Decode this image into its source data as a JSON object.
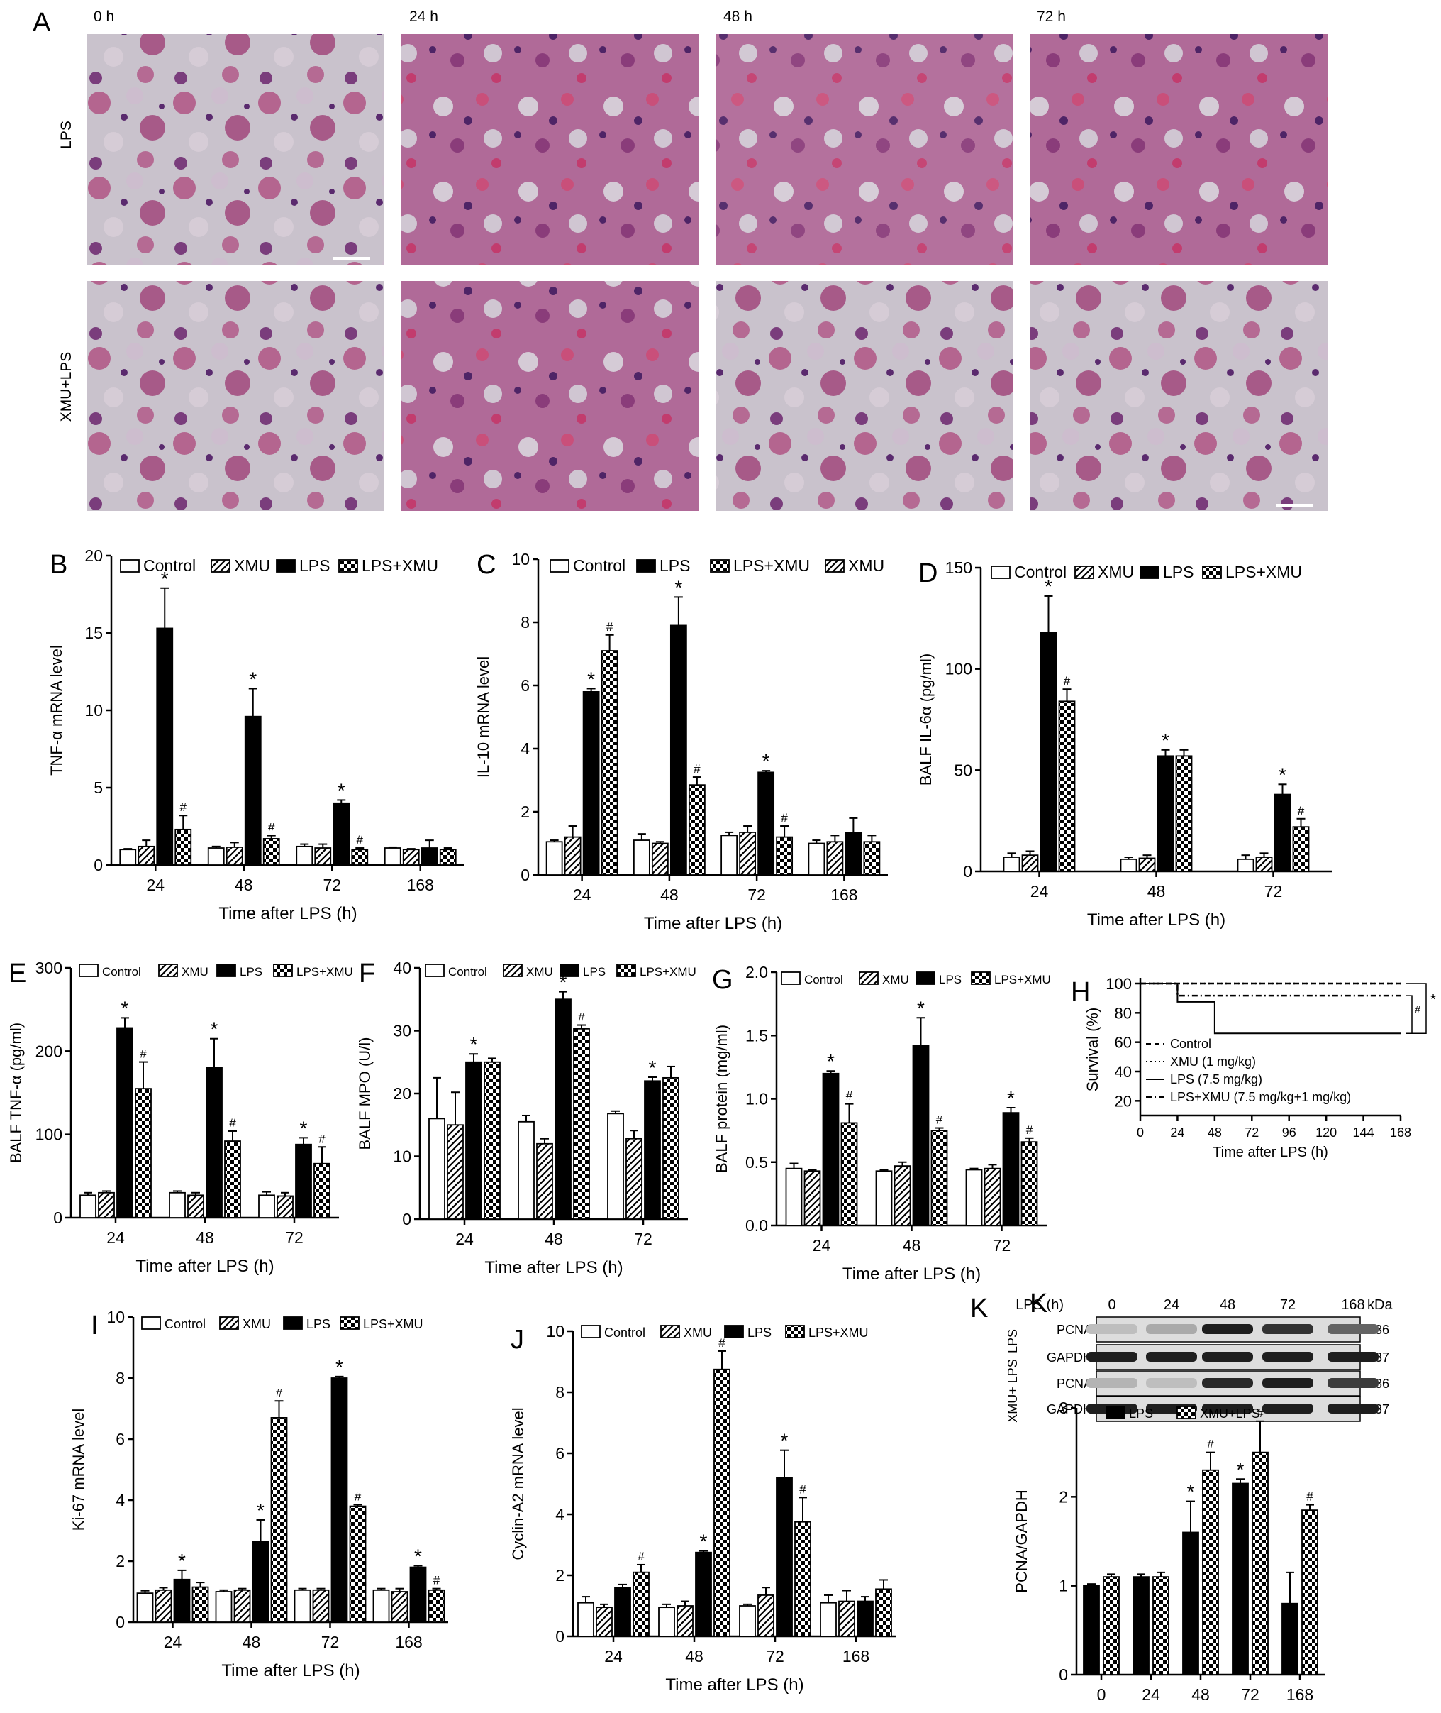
{
  "figure": {
    "panel_a": {
      "letter": "A",
      "time_labels": [
        "0 h",
        "24 h",
        "48 h",
        "72 h"
      ],
      "row_labels": [
        "LPS",
        "XMU+LPS"
      ]
    },
    "panel_k_blot": {
      "header": "LPS (h)",
      "times": [
        "0",
        "24",
        "48",
        "72",
        "168"
      ],
      "kda_label": "kDa",
      "group_labels": [
        "LPS",
        "XMU+ LPS"
      ],
      "bands": [
        {
          "name": "PCNA",
          "kda": "36",
          "intensity": [
            0.15,
            0.25,
            0.95,
            0.85,
            0.6
          ]
        },
        {
          "name": "GAPDH",
          "kda": "37",
          "intensity": [
            0.95,
            0.95,
            0.95,
            0.95,
            0.95
          ]
        },
        {
          "name": "PCNA",
          "kda": "36",
          "intensity": [
            0.2,
            0.15,
            0.9,
            0.95,
            0.8
          ]
        },
        {
          "name": "GAPDH",
          "kda": "37",
          "intensity": [
            0.95,
            0.95,
            0.95,
            0.95,
            0.95
          ]
        }
      ]
    }
  },
  "chart_data": [
    {
      "panel": "B",
      "type": "bar",
      "categories": [
        "24",
        "48",
        "72",
        "168"
      ],
      "series": [
        {
          "name": "Control",
          "values": [
            1.0,
            1.1,
            1.2,
            1.1
          ],
          "errors": [
            0.05,
            0.1,
            0.15,
            0.05
          ]
        },
        {
          "name": "XMU",
          "values": [
            1.2,
            1.15,
            1.1,
            1.0
          ],
          "errors": [
            0.4,
            0.3,
            0.25,
            0.05
          ]
        },
        {
          "name": "LPS",
          "values": [
            15.3,
            9.6,
            4.0,
            1.1
          ],
          "errors": [
            2.6,
            1.8,
            0.2,
            0.5
          ]
        },
        {
          "name": "LPS+XMU",
          "values": [
            2.3,
            1.7,
            1.0,
            1.0
          ],
          "errors": [
            0.9,
            0.2,
            0.1,
            0.1
          ]
        }
      ],
      "annotations": [
        {
          "text": "*",
          "series": 2,
          "category": 0
        },
        {
          "text": "#",
          "series": 3,
          "category": 0
        },
        {
          "text": "*",
          "series": 2,
          "category": 1
        },
        {
          "text": "#",
          "series": 3,
          "category": 1
        },
        {
          "text": "*",
          "series": 2,
          "category": 2
        },
        {
          "text": "#",
          "series": 3,
          "category": 2
        }
      ],
      "xlabel": "Time after LPS (h)",
      "ylabel": "TNF-α mRNA level",
      "ylim": [
        0,
        20
      ],
      "yticks": [
        0,
        5,
        10,
        15,
        20
      ],
      "legend": "top"
    },
    {
      "panel": "C",
      "type": "bar",
      "categories": [
        "24",
        "48",
        "72",
        "168"
      ],
      "series": [
        {
          "name": "Control",
          "values": [
            1.05,
            1.1,
            1.25,
            1.0
          ],
          "errors": [
            0.05,
            0.2,
            0.1,
            0.1
          ]
        },
        {
          "name": "XMU",
          "values": [
            1.2,
            1.0,
            1.35,
            1.05
          ],
          "errors": [
            0.35,
            0.05,
            0.2,
            0.2
          ]
        },
        {
          "name": "LPS",
          "values": [
            5.8,
            7.9,
            3.25,
            1.35
          ],
          "errors": [
            0.1,
            0.9,
            0.05,
            0.45
          ]
        },
        {
          "name": "LPS+XMU",
          "values": [
            7.1,
            2.85,
            1.2,
            1.05
          ],
          "errors": [
            0.5,
            0.25,
            0.35,
            0.2
          ]
        }
      ],
      "legend_order": [
        "Control",
        "LPS",
        "LPS+XMU",
        "XMU"
      ],
      "annotations": [
        {
          "text": "*",
          "series": 2,
          "category": 0
        },
        {
          "text": "#",
          "series": 3,
          "category": 0
        },
        {
          "text": "*",
          "series": 2,
          "category": 1
        },
        {
          "text": "#",
          "series": 3,
          "category": 1
        },
        {
          "text": "*",
          "series": 2,
          "category": 2
        },
        {
          "text": "#",
          "series": 3,
          "category": 2
        }
      ],
      "xlabel": "Time after LPS (h)",
      "ylabel": "IL-10 mRNA level",
      "ylim": [
        0,
        10
      ],
      "yticks": [
        0,
        2,
        4,
        6,
        8,
        10
      ],
      "legend": "top"
    },
    {
      "panel": "D",
      "type": "bar",
      "categories": [
        "24",
        "48",
        "72"
      ],
      "series": [
        {
          "name": "Control",
          "values": [
            7,
            6,
            6
          ],
          "errors": [
            2,
            1,
            2
          ]
        },
        {
          "name": "XMU",
          "values": [
            8,
            6.5,
            7
          ],
          "errors": [
            2,
            1.5,
            2
          ]
        },
        {
          "name": "LPS",
          "values": [
            118,
            57,
            38
          ],
          "errors": [
            18,
            3,
            5
          ]
        },
        {
          "name": "LPS+XMU",
          "values": [
            84,
            57,
            22
          ],
          "errors": [
            6,
            3,
            4
          ]
        }
      ],
      "annotations": [
        {
          "text": "*",
          "series": 2,
          "category": 0
        },
        {
          "text": "#",
          "series": 3,
          "category": 0
        },
        {
          "text": "*",
          "series": 2,
          "category": 1
        },
        {
          "text": "*",
          "series": 2,
          "category": 2
        },
        {
          "text": "#",
          "series": 3,
          "category": 2
        }
      ],
      "xlabel": "Time after LPS (h)",
      "ylabel": "BALF IL-6α (pg/ml)",
      "ylim": [
        0,
        150
      ],
      "yticks": [
        0,
        50,
        100,
        150
      ],
      "legend": "top"
    },
    {
      "panel": "E",
      "type": "bar",
      "categories": [
        "24",
        "48",
        "72"
      ],
      "series": [
        {
          "name": "Control",
          "values": [
            27,
            30,
            27
          ],
          "errors": [
            3,
            2,
            4
          ]
        },
        {
          "name": "XMU",
          "values": [
            30,
            27,
            26
          ],
          "errors": [
            2,
            3,
            4
          ]
        },
        {
          "name": "LPS",
          "values": [
            228,
            180,
            88
          ],
          "errors": [
            12,
            35,
            8
          ]
        },
        {
          "name": "LPS+XMU",
          "values": [
            155,
            92,
            65
          ],
          "errors": [
            32,
            12,
            20
          ]
        }
      ],
      "annotations": [
        {
          "text": "*",
          "series": 2,
          "category": 0
        },
        {
          "text": "#",
          "series": 3,
          "category": 0
        },
        {
          "text": "*",
          "series": 2,
          "category": 1
        },
        {
          "text": "#",
          "series": 3,
          "category": 1
        },
        {
          "text": "*",
          "series": 2,
          "category": 2
        },
        {
          "text": "#",
          "series": 3,
          "category": 2
        }
      ],
      "xlabel": "Time after LPS (h)",
      "ylabel": "BALF TNF-α (pg/ml)",
      "ylim": [
        0,
        300
      ],
      "yticks": [
        0,
        100,
        200,
        300
      ],
      "legend": "top"
    },
    {
      "panel": "F",
      "type": "bar",
      "categories": [
        "24",
        "48",
        "72"
      ],
      "series": [
        {
          "name": "Control",
          "values": [
            16,
            15.5,
            16.8
          ],
          "errors": [
            6.5,
            1.0,
            0.4
          ]
        },
        {
          "name": "XMU",
          "values": [
            15,
            12,
            12.8
          ],
          "errors": [
            5.2,
            0.8,
            1.3
          ]
        },
        {
          "name": "LPS",
          "values": [
            25,
            35,
            22
          ],
          "errors": [
            1.3,
            1.2,
            0.6
          ]
        },
        {
          "name": "LPS+XMU",
          "values": [
            25,
            30.3,
            22.5
          ],
          "errors": [
            0.6,
            0.6,
            1.8
          ]
        }
      ],
      "annotations": [
        {
          "text": "*",
          "series": 2,
          "category": 0
        },
        {
          "text": "*",
          "series": 2,
          "category": 1
        },
        {
          "text": "#",
          "series": 3,
          "category": 1
        },
        {
          "text": "*",
          "series": 2,
          "category": 2
        }
      ],
      "xlabel": "Time after LPS (h)",
      "ylabel": "BALF MPO (U/l)",
      "ylim": [
        0,
        40
      ],
      "yticks": [
        0,
        10,
        20,
        30,
        40
      ],
      "legend": "top"
    },
    {
      "panel": "G",
      "type": "bar",
      "categories": [
        "24",
        "48",
        "72"
      ],
      "series": [
        {
          "name": "Control",
          "values": [
            0.45,
            0.43,
            0.44
          ],
          "errors": [
            0.04,
            0.01,
            0.01
          ]
        },
        {
          "name": "XMU",
          "values": [
            0.43,
            0.47,
            0.45
          ],
          "errors": [
            0.01,
            0.03,
            0.03
          ]
        },
        {
          "name": "LPS",
          "values": [
            1.2,
            1.42,
            0.89
          ],
          "errors": [
            0.02,
            0.22,
            0.04
          ]
        },
        {
          "name": "LPS+XMU",
          "values": [
            0.81,
            0.75,
            0.66
          ],
          "errors": [
            0.15,
            0.02,
            0.03
          ]
        }
      ],
      "annotations": [
        {
          "text": "*",
          "series": 2,
          "category": 0
        },
        {
          "text": "#",
          "series": 3,
          "category": 0
        },
        {
          "text": "*",
          "series": 2,
          "category": 1
        },
        {
          "text": "#",
          "series": 3,
          "category": 1
        },
        {
          "text": "*",
          "series": 2,
          "category": 2
        },
        {
          "text": "#",
          "series": 3,
          "category": 2
        }
      ],
      "xlabel": "Time after LPS (h)",
      "ylabel": "BALF protein (mg/ml)",
      "ylim": [
        0,
        2.0
      ],
      "yticks": [
        0.0,
        0.5,
        1.0,
        1.5,
        2.0
      ],
      "legend": "top"
    },
    {
      "panel": "H",
      "type": "line",
      "x": [
        0,
        24,
        48,
        72,
        96,
        120,
        144,
        168
      ],
      "series": [
        {
          "name": "Control",
          "style": "dashed",
          "steps": [
            [
              0,
              100
            ],
            [
              168,
              100
            ]
          ]
        },
        {
          "name": "XMU (1 mg/kg)",
          "style": "dotted",
          "steps": [
            [
              0,
              100
            ],
            [
              168,
              100
            ]
          ]
        },
        {
          "name": "LPS (7.5 mg/kg)",
          "style": "solid",
          "steps": [
            [
              0,
              100
            ],
            [
              24,
              100
            ],
            [
              24,
              87.5
            ],
            [
              48,
              87.5
            ],
            [
              48,
              66
            ],
            [
              168,
              66
            ]
          ]
        },
        {
          "name": "LPS+XMU (7.5 mg/kg+1 mg/kg)",
          "style": "dashdot",
          "steps": [
            [
              0,
              100
            ],
            [
              24,
              100
            ],
            [
              24,
              91.7
            ],
            [
              168,
              91.7
            ]
          ]
        }
      ],
      "significance": [
        "#",
        "*"
      ],
      "xlabel": "Time after LPS (h)",
      "ylabel": "Survival (%)",
      "xlim": [
        0,
        168
      ],
      "ylim": [
        10,
        100
      ],
      "yticks": [
        20,
        40,
        60,
        80,
        100
      ],
      "legend": "bottom-left"
    },
    {
      "panel": "I",
      "type": "bar",
      "categories": [
        "24",
        "48",
        "72",
        "168"
      ],
      "series": [
        {
          "name": "Control",
          "values": [
            0.95,
            1.0,
            1.05,
            1.05
          ],
          "errors": [
            0.08,
            0.05,
            0.05,
            0.05
          ]
        },
        {
          "name": "XMU",
          "values": [
            1.05,
            1.05,
            1.05,
            1.0
          ],
          "errors": [
            0.08,
            0.05,
            0.05,
            0.1
          ]
        },
        {
          "name": "LPS",
          "values": [
            1.4,
            2.65,
            8.0,
            1.8
          ],
          "errors": [
            0.3,
            0.7,
            0.05,
            0.05
          ]
        },
        {
          "name": "LPS+XMU",
          "values": [
            1.15,
            6.7,
            3.8,
            1.05
          ],
          "errors": [
            0.15,
            0.55,
            0.05,
            0.05
          ]
        }
      ],
      "annotations": [
        {
          "text": "*",
          "series": 2,
          "category": 0
        },
        {
          "text": "*",
          "series": 2,
          "category": 1
        },
        {
          "text": "#",
          "series": 3,
          "category": 1
        },
        {
          "text": "*",
          "series": 2,
          "category": 2
        },
        {
          "text": "#",
          "series": 3,
          "category": 2
        },
        {
          "text": "*",
          "series": 2,
          "category": 3
        },
        {
          "text": "#",
          "series": 3,
          "category": 3
        }
      ],
      "xlabel": "Time after LPS (h)",
      "ylabel": "Ki-67 mRNA level",
      "ylim": [
        0,
        10
      ],
      "yticks": [
        0,
        2,
        4,
        6,
        8,
        10
      ],
      "legend": "top"
    },
    {
      "panel": "J",
      "type": "bar",
      "categories": [
        "24",
        "48",
        "72",
        "168"
      ],
      "series": [
        {
          "name": "Control",
          "values": [
            1.1,
            0.95,
            1.0,
            1.1
          ],
          "errors": [
            0.2,
            0.1,
            0.05,
            0.25
          ]
        },
        {
          "name": "XMU",
          "values": [
            0.95,
            1.0,
            1.35,
            1.15
          ],
          "errors": [
            0.1,
            0.15,
            0.25,
            0.35
          ]
        },
        {
          "name": "LPS",
          "values": [
            1.6,
            2.75,
            5.2,
            1.15
          ],
          "errors": [
            0.1,
            0.05,
            0.9,
            0.15
          ]
        },
        {
          "name": "LPS+XMU",
          "values": [
            2.1,
            8.75,
            3.75,
            1.55
          ],
          "errors": [
            0.25,
            0.6,
            0.8,
            0.3
          ]
        }
      ],
      "annotations": [
        {
          "text": "#",
          "series": 3,
          "category": 0
        },
        {
          "text": "*",
          "series": 2,
          "category": 1
        },
        {
          "text": "#",
          "series": 3,
          "category": 1
        },
        {
          "text": "*",
          "series": 2,
          "category": 2
        },
        {
          "text": "#",
          "series": 3,
          "category": 2
        }
      ],
      "xlabel": "Time after LPS (h)",
      "ylabel": "Cyclin-A2 mRNA level",
      "ylim": [
        0,
        10
      ],
      "yticks": [
        0,
        2,
        4,
        6,
        8,
        10
      ],
      "legend": "top"
    },
    {
      "panel": "K",
      "type": "bar",
      "categories": [
        "0",
        "24",
        "48",
        "72",
        "168"
      ],
      "series": [
        {
          "name": "LPS",
          "values": [
            1.0,
            1.1,
            1.6,
            2.15,
            0.8
          ],
          "errors": [
            0.02,
            0.03,
            0.35,
            0.05,
            0.35
          ]
        },
        {
          "name": "XMU+LPS",
          "values": [
            1.1,
            1.1,
            2.3,
            2.5,
            1.85
          ],
          "errors": [
            0.03,
            0.05,
            0.2,
            0.35,
            0.06
          ]
        }
      ],
      "annotations": [
        {
          "text": "*",
          "series": 0,
          "category": 2
        },
        {
          "text": "#",
          "series": 1,
          "category": 2
        },
        {
          "text": "*",
          "series": 0,
          "category": 3
        },
        {
          "text": "#",
          "series": 1,
          "category": 3
        },
        {
          "text": "#",
          "series": 1,
          "category": 4
        }
      ],
      "xlabel": "Time after LPS (h)",
      "ylabel": "PCNA/GAPDH",
      "ylim": [
        0,
        3
      ],
      "yticks": [
        0,
        1,
        2,
        3
      ],
      "legend": "top"
    }
  ]
}
